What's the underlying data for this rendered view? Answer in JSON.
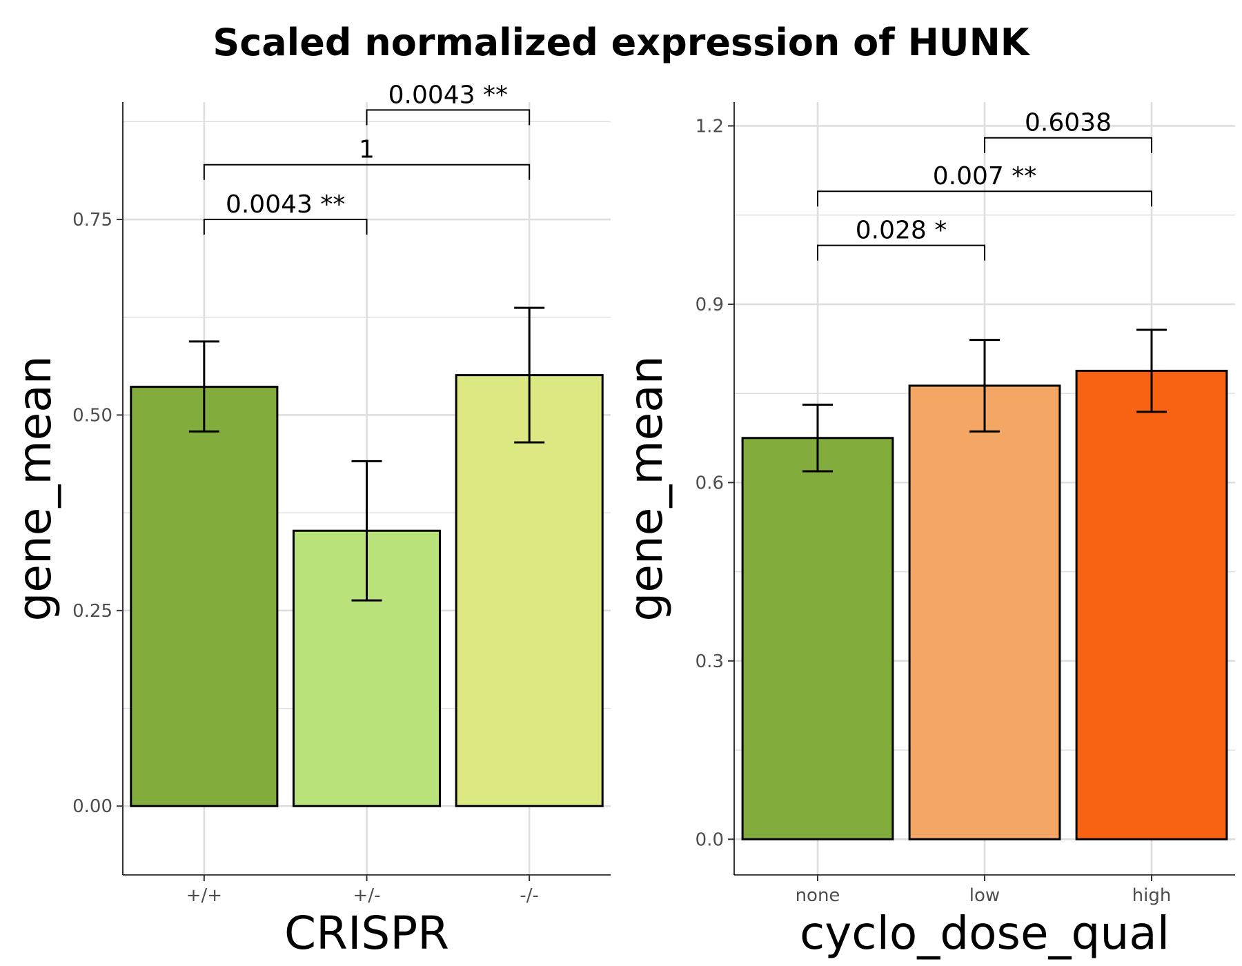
{
  "title": "Scaled normalized expression of HUNK",
  "chart_data": [
    {
      "type": "bar",
      "xlabel": "CRISPR",
      "ylabel": "gene_mean",
      "ylim": [
        -0.088,
        0.9
      ],
      "yticks": [
        "0.00",
        "0.25",
        "0.50",
        "0.75"
      ],
      "ytick_values": [
        0,
        0.25,
        0.5,
        0.75
      ],
      "grid": true,
      "categories": [
        "+/+",
        "+/-",
        "-/-"
      ],
      "values": [
        0.536,
        0.352,
        0.551
      ],
      "error_low": [
        0.479,
        0.263,
        0.465
      ],
      "error_high": [
        0.594,
        0.441,
        0.637
      ],
      "colors": [
        "#82ad3c",
        "#b9e27a",
        "#dde883"
      ],
      "comparisons": [
        {
          "from": "+/+",
          "to": "+/-",
          "label": "0.0043 **",
          "y": 0.75
        },
        {
          "from": "+/+",
          "to": "-/-",
          "label": "1",
          "y": 0.82
        },
        {
          "from": "+/-",
          "to": "-/-",
          "label": "0.0043 **",
          "y": 0.89
        }
      ]
    },
    {
      "type": "bar",
      "xlabel": "cyclo_dose_qual",
      "ylabel": "gene_mean",
      "ylim": [
        -0.06,
        1.24
      ],
      "yticks": [
        "0.0",
        "0.3",
        "0.6",
        "0.9",
        "1.2"
      ],
      "ytick_values": [
        0,
        0.3,
        0.6,
        0.9,
        1.2
      ],
      "grid": true,
      "categories": [
        "none",
        "low",
        "high"
      ],
      "values": [
        0.675,
        0.763,
        0.788
      ],
      "error_low": [
        0.619,
        0.686,
        0.719
      ],
      "error_high": [
        0.731,
        0.84,
        0.857
      ],
      "colors": [
        "#82ad3c",
        "#f4a664",
        "#f86313"
      ],
      "comparisons": [
        {
          "from": "none",
          "to": "low",
          "label": "0.028 *",
          "y": 0.999
        },
        {
          "from": "none",
          "to": "high",
          "label": "0.007 **",
          "y": 1.09
        },
        {
          "from": "low",
          "to": "high",
          "label": "0.6038",
          "y": 1.18
        }
      ]
    }
  ]
}
